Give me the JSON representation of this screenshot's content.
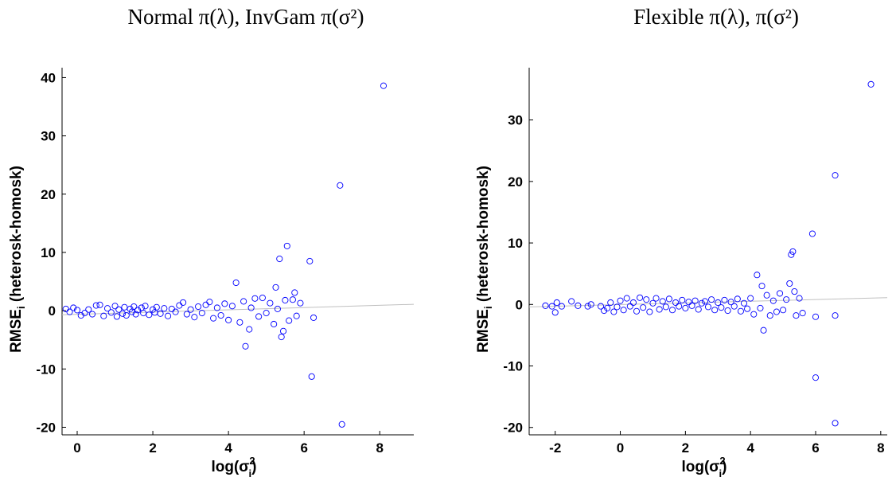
{
  "chart_data": [
    {
      "type": "scatter",
      "title": "Normal π(λ), InvGam π(σ²)",
      "x_label": {
        "prefix": "log(σ",
        "superscript": "2",
        "subscript": "i",
        "suffix": ")"
      },
      "y_label": {
        "text": "RMSE",
        "subscript": "i",
        "suffix": " (heterosk-homosk)"
      },
      "color": "#0000ff",
      "x": [
        -0.3,
        -0.2,
        -0.1,
        0,
        0.1,
        0.2,
        0.3,
        0.4,
        0.5,
        0.6,
        0.7,
        0.8,
        0.9,
        1.0,
        1.05,
        1.1,
        1.2,
        1.25,
        1.3,
        1.4,
        1.45,
        1.5,
        1.55,
        1.6,
        1.7,
        1.75,
        1.8,
        1.9,
        2.0,
        2.05,
        2.1,
        2.2,
        2.3,
        2.4,
        2.5,
        2.6,
        2.7,
        2.8,
        2.9,
        3.0,
        3.1,
        3.2,
        3.3,
        3.4,
        3.5,
        3.6,
        3.7,
        3.8,
        3.9,
        4.0,
        4.1,
        4.2,
        4.3,
        4.4,
        4.45,
        4.55,
        4.6,
        4.7,
        4.8,
        4.9,
        5.0,
        5.1,
        5.2,
        5.25,
        5.3,
        5.35,
        5.4,
        5.45,
        5.5,
        5.55,
        5.6,
        5.7,
        5.75,
        5.8,
        5.9,
        6.15,
        6.2,
        6.25,
        6.95,
        7.0,
        8.1
      ],
      "y": [
        0.3,
        -0.2,
        0.5,
        0.1,
        -0.8,
        -0.4,
        0.2,
        -0.6,
        0.9,
        1.0,
        -0.9,
        0.4,
        -0.3,
        0.8,
        -1.0,
        0.2,
        -0.5,
        0.6,
        -0.8,
        0.3,
        -0.2,
        0.7,
        -0.6,
        0.1,
        0.5,
        -0.4,
        0.8,
        -0.7,
        0.2,
        -0.3,
        0.6,
        -0.5,
        0.4,
        -0.9,
        0.3,
        -0.2,
        0.9,
        1.4,
        -0.6,
        0.2,
        -1.1,
        0.7,
        -0.4,
        1.0,
        1.5,
        -1.3,
        0.5,
        -0.8,
        1.2,
        -1.6,
        0.8,
        4.8,
        -2.0,
        1.6,
        -6.1,
        -3.2,
        0.5,
        2.1,
        -1.0,
        2.2,
        -0.4,
        1.3,
        -2.3,
        4.0,
        0.3,
        8.9,
        -4.5,
        -3.5,
        1.8,
        11.1,
        -1.7,
        1.9,
        3.1,
        -0.9,
        1.3,
        8.5,
        -11.3,
        -1.2,
        21.5,
        -19.5,
        38.6
      ],
      "fit_line": {
        "x": [
          -0.4,
          8.9
        ],
        "y": [
          -0.7,
          1.1
        ],
        "color": "#c0c0c0"
      },
      "xlim": [
        -0.4,
        8.9
      ],
      "ylim": [
        -21.3,
        41.7
      ],
      "xticks": [
        0,
        2,
        4,
        6,
        8
      ],
      "yticks": [
        -20,
        -10,
        0,
        10,
        20,
        30,
        40
      ]
    },
    {
      "type": "scatter",
      "title": "Flexible π(λ), π(σ²)",
      "x_label": {
        "prefix": "log(σ",
        "superscript": "2",
        "subscript": "i",
        "suffix": ")"
      },
      "y_label": {
        "text": "RMSE",
        "subscript": "i",
        "suffix": " (heterosk-homosk)"
      },
      "color": "#0000ff",
      "x": [
        -2.3,
        -2.1,
        -2.0,
        -1.95,
        -1.8,
        -1.5,
        -1.3,
        -1.0,
        -0.9,
        -0.6,
        -0.5,
        -0.4,
        -0.3,
        -0.2,
        -0.1,
        0.0,
        0.1,
        0.2,
        0.3,
        0.4,
        0.5,
        0.6,
        0.7,
        0.8,
        0.9,
        1.0,
        1.1,
        1.2,
        1.3,
        1.4,
        1.5,
        1.6,
        1.7,
        1.8,
        1.9,
        2.0,
        2.1,
        2.2,
        2.3,
        2.4,
        2.5,
        2.6,
        2.7,
        2.8,
        2.9,
        3.0,
        3.1,
        3.2,
        3.3,
        3.4,
        3.5,
        3.6,
        3.7,
        3.8,
        3.9,
        4.0,
        4.1,
        4.2,
        4.3,
        4.35,
        4.4,
        4.5,
        4.6,
        4.7,
        4.8,
        4.9,
        5.0,
        5.1,
        5.2,
        5.25,
        5.3,
        5.35,
        5.4,
        5.5,
        5.6,
        5.9,
        6.0,
        6.0,
        6.6,
        6.6,
        6.6,
        7.7
      ],
      "y": [
        -0.2,
        -0.3,
        -1.3,
        0.3,
        -0.3,
        0.5,
        -0.2,
        -0.3,
        0.0,
        -0.3,
        -1.0,
        -0.6,
        0.3,
        -1.2,
        -0.4,
        0.6,
        -0.9,
        1.0,
        -0.3,
        0.3,
        -1.1,
        1.1,
        -0.5,
        0.8,
        -1.2,
        0.2,
        1.0,
        -0.8,
        0.5,
        -0.4,
        0.9,
        -0.9,
        0.3,
        -0.3,
        0.7,
        -0.6,
        0.4,
        -0.2,
        0.6,
        -0.8,
        0.2,
        0.5,
        -0.4,
        0.8,
        -0.9,
        0.3,
        -0.5,
        0.7,
        -1.0,
        0.4,
        -0.3,
        0.9,
        -1.1,
        0.2,
        -0.7,
        1.0,
        -1.6,
        4.8,
        -0.6,
        3.0,
        -4.2,
        1.5,
        -1.8,
        0.6,
        -1.2,
        1.8,
        -0.9,
        0.8,
        3.4,
        8.1,
        8.6,
        2.1,
        -1.8,
        1.0,
        -1.4,
        11.5,
        -2.0,
        -11.9,
        21.0,
        -19.3,
        -1.8,
        35.8
      ],
      "fit_line": {
        "x": [
          -2.8,
          8.2
        ],
        "y": [
          -0.4,
          1.1
        ],
        "color": "#c0c0c0"
      },
      "xlim": [
        -2.8,
        8.2
      ],
      "ylim": [
        -21.2,
        38.5
      ],
      "xticks": [
        -2,
        0,
        2,
        4,
        6,
        8
      ],
      "yticks": [
        -20,
        -10,
        0,
        10,
        20,
        30
      ]
    }
  ]
}
